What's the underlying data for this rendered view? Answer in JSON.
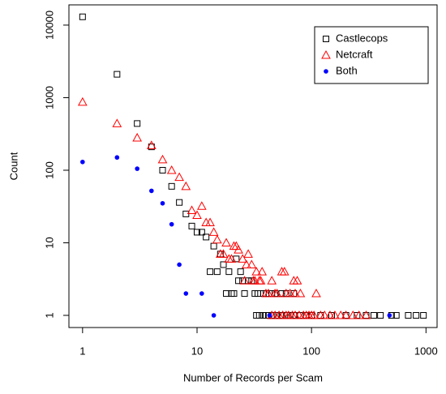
{
  "chart_data": {
    "type": "scatter",
    "x_label": "Number of Records per Scam",
    "y_label": "Count",
    "xlog": true,
    "ylog": true,
    "xlim": [
      0.76,
      1250
    ],
    "ylim": [
      0.68,
      19000
    ],
    "xticks": [
      1,
      10,
      100,
      1000
    ],
    "yticks": [
      1,
      10,
      100,
      1000,
      10000
    ],
    "legend": "top-right",
    "series": [
      {
        "name": "Castlecops",
        "color": "#000000",
        "marker": "square",
        "x": [
          1,
          2,
          3,
          4,
          5,
          6,
          7,
          8,
          9,
          10,
          11,
          12,
          13,
          14,
          15,
          16,
          17,
          18,
          19,
          20,
          21,
          22,
          23,
          24,
          25,
          26,
          28,
          30,
          32,
          34,
          38,
          40,
          45,
          48,
          55,
          60,
          70,
          33,
          35,
          38,
          40,
          42,
          46,
          50,
          55,
          60,
          65,
          70,
          80,
          90,
          100,
          120,
          150,
          200,
          250,
          300,
          350,
          400,
          500,
          550,
          700,
          820,
          950
        ],
        "values": [
          13000,
          2100,
          440,
          210,
          100,
          60,
          36,
          25,
          17,
          14,
          14,
          12,
          4,
          9,
          4,
          7,
          5,
          2,
          4,
          2,
          2,
          6,
          3,
          4,
          3,
          2,
          3,
          3,
          2,
          2,
          2,
          2,
          2,
          2,
          2,
          2,
          2,
          1,
          1,
          1,
          1,
          1,
          1,
          1,
          1,
          1,
          1,
          1,
          1,
          1,
          1,
          1,
          1,
          1,
          1,
          1,
          1,
          1,
          1,
          1,
          1,
          1,
          1
        ]
      },
      {
        "name": "Netcraft",
        "color": "#ff0000",
        "marker": "triangle",
        "x": [
          1,
          2,
          3,
          4,
          5,
          6,
          7,
          8,
          9,
          10,
          11,
          12,
          13,
          14,
          15,
          16,
          17,
          18,
          19,
          20,
          21,
          22,
          23,
          25,
          26,
          27,
          28,
          30,
          31,
          32,
          33,
          35,
          36,
          37,
          40,
          42,
          45,
          48,
          50,
          55,
          58,
          60,
          65,
          70,
          72,
          75,
          80,
          110,
          45,
          48,
          52,
          56,
          60,
          63,
          68,
          72,
          78,
          85,
          90,
          95,
          100,
          105,
          120,
          130,
          145,
          160,
          180,
          200,
          230,
          260,
          300
        ],
        "values": [
          870,
          440,
          280,
          220,
          140,
          100,
          80,
          60,
          28,
          24,
          32,
          19,
          19,
          14,
          11,
          7,
          7,
          10,
          6,
          6,
          9,
          9,
          8,
          6,
          3,
          5,
          7,
          5,
          3,
          3,
          4,
          3,
          3,
          4,
          2,
          2,
          3,
          2,
          2,
          4,
          4,
          2,
          2,
          3,
          2,
          3,
          2,
          2,
          1,
          1,
          1,
          1,
          1,
          1,
          1,
          1,
          1,
          1,
          1,
          1,
          1,
          1,
          1,
          1,
          1,
          1,
          1,
          1,
          1,
          1,
          1
        ]
      },
      {
        "name": "Both",
        "color": "#0000ff",
        "marker": "circle",
        "x": [
          1,
          2,
          3,
          4,
          5,
          6,
          7,
          8,
          11,
          14,
          43,
          480
        ],
        "values": [
          130,
          150,
          105,
          52,
          35,
          18,
          5,
          2,
          2,
          1,
          1,
          1
        ]
      }
    ]
  }
}
